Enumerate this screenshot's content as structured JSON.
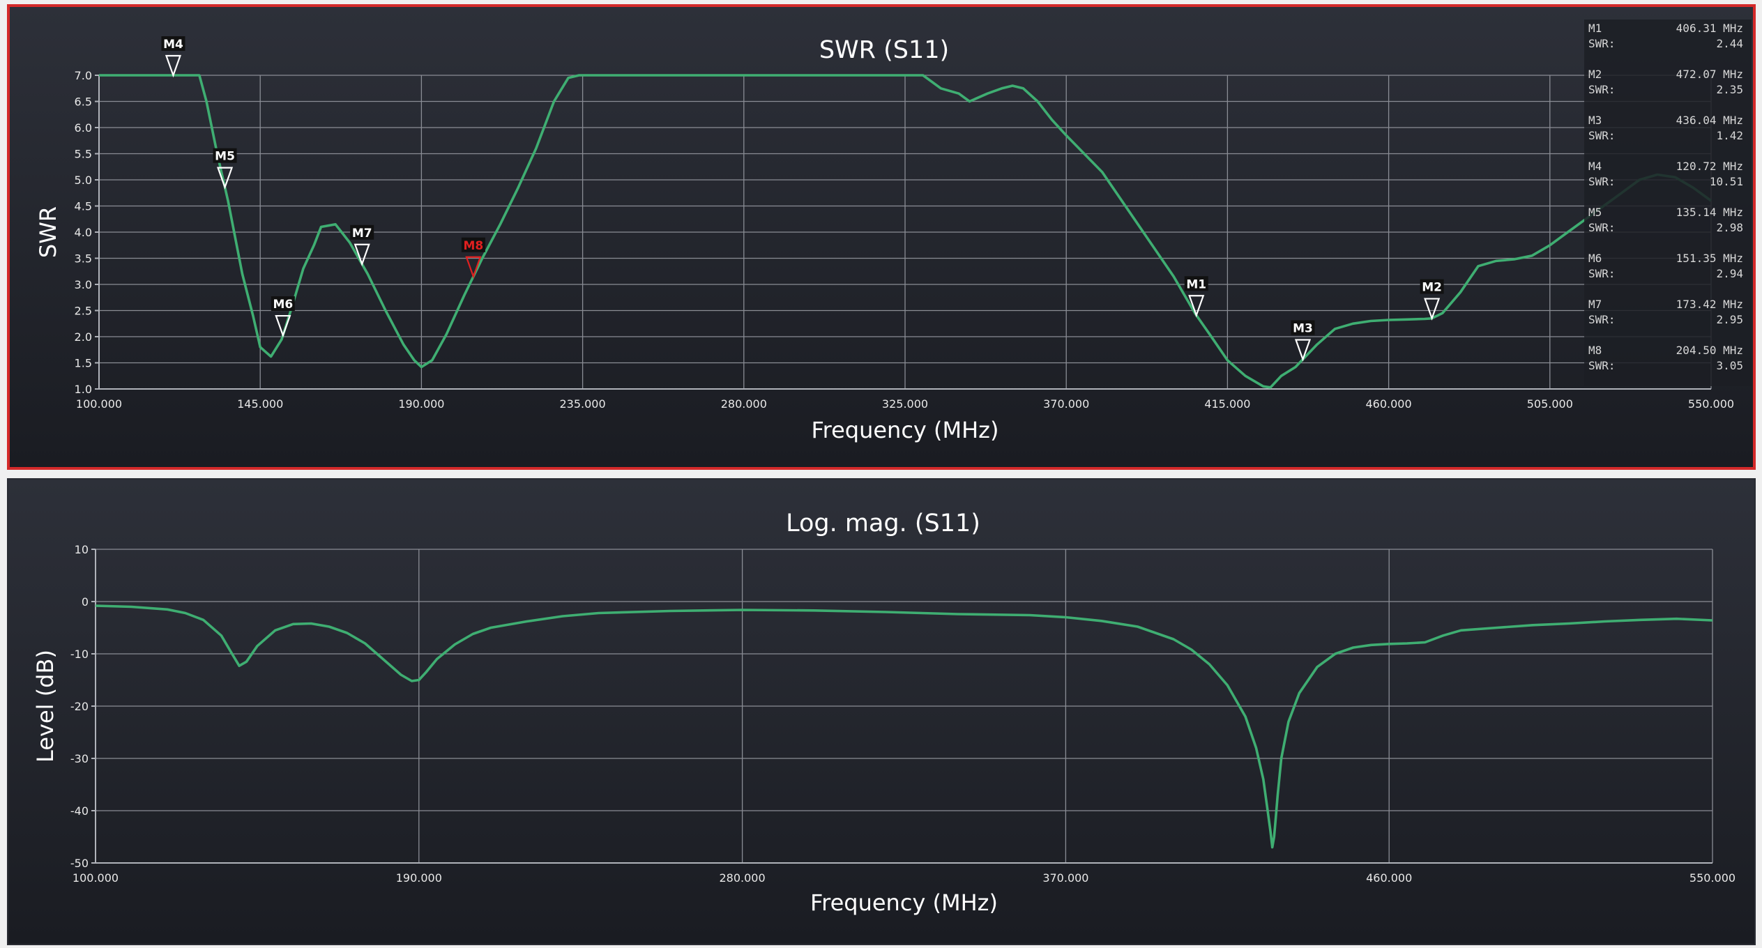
{
  "colors": {
    "trace": "#3fae72",
    "active_marker": "#e02020",
    "marker": "#ffffff",
    "selected_border": "#d42a2a"
  },
  "chart_data": [
    {
      "type": "line",
      "title": "SWR (S11)",
      "xlabel": "Frequency (MHz)",
      "ylabel": "SWR",
      "xlim": [
        100,
        550
      ],
      "ylim": [
        1.0,
        7.0
      ],
      "xticks": [
        "100.000",
        "145.000",
        "190.000",
        "235.000",
        "280.000",
        "325.000",
        "370.000",
        "415.000",
        "460.000",
        "505.000",
        "550.000"
      ],
      "yticks": [
        "1.0",
        "1.5",
        "2.0",
        "2.5",
        "3.0",
        "3.5",
        "4.0",
        "4.5",
        "5.0",
        "5.5",
        "6.0",
        "6.5",
        "7.0"
      ],
      "grid": true,
      "series": [
        {
          "x": [
            100,
            110,
            120,
            125,
            126,
            128,
            130,
            133,
            136,
            140,
            143,
            145,
            148,
            151,
            154,
            157,
            160,
            162,
            166,
            170,
            175,
            180,
            185,
            188,
            190,
            193,
            197,
            202,
            207,
            212,
            217,
            222,
            227,
            231,
            234,
            300,
            315,
            325,
            327,
            330,
            335,
            340,
            343,
            348,
            352,
            355,
            358,
            362,
            366,
            370,
            380,
            390,
            400,
            406,
            410,
            415,
            420,
            425,
            427,
            430,
            434,
            440,
            445,
            450,
            455,
            460,
            465,
            470,
            472,
            475,
            480,
            485,
            490,
            495,
            500,
            505,
            510,
            515,
            520,
            525,
            530,
            535,
            540,
            545,
            550
          ],
          "y": [
            7.0,
            7.0,
            7.0,
            7.0,
            7.0,
            7.0,
            6.5,
            5.5,
            4.6,
            3.2,
            2.4,
            1.8,
            1.62,
            1.95,
            2.6,
            3.3,
            3.75,
            4.1,
            4.15,
            3.8,
            3.2,
            2.5,
            1.85,
            1.55,
            1.42,
            1.55,
            2.05,
            2.8,
            3.5,
            4.15,
            4.85,
            5.6,
            6.5,
            6.95,
            7.0,
            7.0,
            7.0,
            7.0,
            7.0,
            7.0,
            6.75,
            6.65,
            6.5,
            6.65,
            6.75,
            6.8,
            6.75,
            6.5,
            6.15,
            5.85,
            5.15,
            4.15,
            3.15,
            2.44,
            2.05,
            1.55,
            1.25,
            1.05,
            1.03,
            1.25,
            1.42,
            1.85,
            2.15,
            2.25,
            2.3,
            2.32,
            2.33,
            2.34,
            2.35,
            2.45,
            2.85,
            3.35,
            3.45,
            3.48,
            3.55,
            3.75,
            4.0,
            4.25,
            4.5,
            4.75,
            5.0,
            5.1,
            5.05,
            4.85,
            4.6
          ]
        }
      ],
      "markers": [
        {
          "label": "M4",
          "x": 120.72,
          "swr": "10.51",
          "freq": "120.72 MHz",
          "active": false
        },
        {
          "label": "M5",
          "x": 135.14,
          "swr": "2.98",
          "freq": "135.14 MHz",
          "active": false
        },
        {
          "label": "M6",
          "x": 151.35,
          "swr": "2.94",
          "freq": "151.35 MHz",
          "active": false
        },
        {
          "label": "M7",
          "x": 173.42,
          "swr": "2.95",
          "freq": "173.42 MHz",
          "active": false
        },
        {
          "label": "M8",
          "x": 204.5,
          "swr": "3.05",
          "freq": "204.50 MHz",
          "active": true
        },
        {
          "label": "M1",
          "x": 406.31,
          "swr": "2.44",
          "freq": "406.31 MHz",
          "active": false
        },
        {
          "label": "M3",
          "x": 436.04,
          "swr": "1.42",
          "freq": "436.04 MHz",
          "active": false
        },
        {
          "label": "M2",
          "x": 472.07,
          "swr": "2.35",
          "freq": "472.07 MHz",
          "active": false
        }
      ],
      "readout": {
        "swr_key": "SWR:",
        "rows": [
          {
            "label": "M1",
            "freq": "406.31 MHz",
            "swr": "2.44"
          },
          {
            "label": "M2",
            "freq": "472.07 MHz",
            "swr": "2.35"
          },
          {
            "label": "M3",
            "freq": "436.04 MHz",
            "swr": "1.42"
          },
          {
            "label": "M4",
            "freq": "120.72 MHz",
            "swr": "10.51"
          },
          {
            "label": "M5",
            "freq": "135.14 MHz",
            "swr": "2.98"
          },
          {
            "label": "M6",
            "freq": "151.35 MHz",
            "swr": "2.94"
          },
          {
            "label": "M7",
            "freq": "173.42 MHz",
            "swr": "2.95"
          },
          {
            "label": "M8",
            "freq": "204.50 MHz",
            "swr": "3.05"
          }
        ]
      }
    },
    {
      "type": "line",
      "title": "Log. mag. (S11)",
      "xlabel": "Frequency (MHz)",
      "ylabel": "Level (dB)",
      "xlim": [
        100,
        550
      ],
      "ylim": [
        -50,
        10
      ],
      "xticks": [
        "100.000",
        "190.000",
        "280.000",
        "370.000",
        "460.000",
        "550.000"
      ],
      "yticks": [
        "10",
        "0",
        "-10",
        "-20",
        "-30",
        "-40",
        "-50"
      ],
      "grid": true,
      "series": [
        {
          "x": [
            100,
            110,
            120,
            125,
            130,
            135,
            138,
            140,
            142,
            145,
            150,
            155,
            160,
            165,
            170,
            175,
            180,
            185,
            188,
            190,
            192,
            195,
            200,
            205,
            210,
            220,
            230,
            240,
            260,
            280,
            300,
            320,
            340,
            360,
            370,
            380,
            390,
            400,
            405,
            410,
            415,
            420,
            423,
            425,
            426,
            427,
            427.5,
            428,
            428.5,
            429,
            430,
            432,
            435,
            440,
            445,
            450,
            455,
            460,
            465,
            470,
            475,
            480,
            490,
            500,
            510,
            520,
            530,
            540,
            550
          ],
          "y": [
            -0.8,
            -1.0,
            -1.5,
            -2.2,
            -3.5,
            -6.5,
            -10.0,
            -12.3,
            -11.5,
            -8.5,
            -5.5,
            -4.3,
            -4.2,
            -4.8,
            -6.0,
            -8.0,
            -11.0,
            -14.0,
            -15.2,
            -15.0,
            -13.5,
            -11.0,
            -8.2,
            -6.2,
            -5.0,
            -3.8,
            -2.8,
            -2.2,
            -1.8,
            -1.6,
            -1.7,
            -2.0,
            -2.4,
            -2.6,
            -3.0,
            -3.7,
            -4.8,
            -7.2,
            -9.2,
            -12.0,
            -16.0,
            -22.0,
            -28.0,
            -34.0,
            -39.0,
            -44.0,
            -47.0,
            -45.0,
            -41.0,
            -37.0,
            -30.0,
            -23.0,
            -17.5,
            -12.5,
            -10.0,
            -8.8,
            -8.3,
            -8.1,
            -8.0,
            -7.8,
            -6.5,
            -5.5,
            -5.0,
            -4.5,
            -4.2,
            -3.8,
            -3.5,
            -3.3,
            -3.6
          ]
        }
      ]
    }
  ]
}
